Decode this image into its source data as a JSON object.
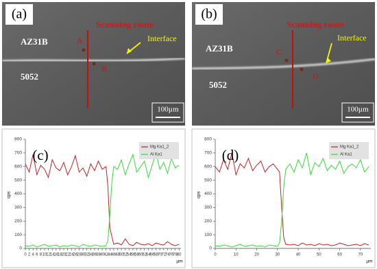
{
  "panels": [
    {
      "label": "(a)",
      "scan_label": "Scanning route",
      "interface_label": "Interface",
      "upper_material": "AZ31B",
      "lower_material": "5052",
      "points": [
        "A",
        "B"
      ],
      "scale_bar": "100µm"
    },
    {
      "label": "(b)",
      "scan_label": "Scanning route",
      "interface_label": "Interface",
      "upper_material": "AZ31B",
      "lower_material": "5052",
      "points": [
        "C",
        "D"
      ],
      "scale_bar": "100µm"
    }
  ],
  "chart_data": [
    {
      "type": "line",
      "panel_label": "(c)",
      "y_label": "cps",
      "x_label": "µm",
      "x": [
        0,
        2,
        4,
        6,
        8,
        10,
        12,
        14,
        16,
        18,
        20,
        22,
        24,
        26,
        28,
        30,
        32,
        34,
        36,
        38,
        40,
        42,
        43,
        44,
        45,
        46,
        48,
        50,
        52,
        54,
        56,
        58,
        60,
        62,
        64,
        66,
        68,
        70,
        72,
        74,
        76,
        78,
        80
      ],
      "series": [
        {
          "name": "Mg Ka1_2",
          "color": "#cc1f1f",
          "values": [
            620,
            560,
            690,
            540,
            610,
            580,
            520,
            650,
            590,
            570,
            630,
            540,
            600,
            680,
            560,
            590,
            530,
            620,
            570,
            640,
            580,
            600,
            450,
            150,
            90,
            30,
            40,
            25,
            70,
            30,
            20,
            45,
            30,
            25,
            35,
            20,
            40,
            30,
            25,
            50,
            30,
            20,
            30
          ]
        },
        {
          "name": "Al Ka1",
          "color": "#33dd33",
          "values": [
            20,
            15,
            25,
            10,
            20,
            30,
            15,
            20,
            25,
            10,
            20,
            15,
            25,
            20,
            10,
            30,
            20,
            15,
            25,
            20,
            15,
            20,
            60,
            250,
            480,
            600,
            580,
            650,
            540,
            620,
            690,
            560,
            600,
            640,
            520,
            610,
            700,
            580,
            630,
            550,
            660,
            590,
            610
          ]
        }
      ],
      "xlim": [
        0,
        81
      ],
      "ylim": [
        0,
        800
      ],
      "xticks": [
        0,
        2,
        4,
        6,
        8,
        10,
        12,
        14,
        16,
        18,
        20,
        22,
        24,
        26,
        28,
        30,
        32,
        34,
        36,
        38,
        40,
        42,
        44,
        46,
        48,
        50,
        52,
        54,
        56,
        58,
        60,
        62,
        64,
        66,
        68,
        70,
        72,
        74,
        76,
        78,
        80
      ],
      "yticks": [
        0,
        100,
        200,
        300,
        400,
        500,
        600,
        700,
        800
      ]
    },
    {
      "type": "line",
      "panel_label": "(d)",
      "y_label": "cps",
      "x_label": "µm",
      "x": [
        0,
        2,
        4,
        6,
        8,
        10,
        12,
        14,
        16,
        18,
        20,
        22,
        24,
        26,
        28,
        30,
        31,
        32,
        33,
        34,
        36,
        38,
        40,
        42,
        44,
        46,
        48,
        50,
        52,
        54,
        56,
        58,
        60,
        62,
        64,
        66,
        68,
        70,
        72,
        74
      ],
      "series": [
        {
          "name": "Mg Ka1_2",
          "color": "#cc1f1f",
          "values": [
            600,
            560,
            650,
            580,
            700,
            540,
            620,
            590,
            660,
            570,
            610,
            640,
            560,
            600,
            620,
            580,
            560,
            300,
            80,
            30,
            25,
            30,
            20,
            40,
            25,
            30,
            20,
            35,
            25,
            30,
            20,
            25,
            40,
            30,
            20,
            25,
            30,
            20,
            35,
            25
          ]
        },
        {
          "name": "Al Ka1",
          "color": "#33dd33",
          "values": [
            20,
            15,
            25,
            20,
            10,
            20,
            30,
            15,
            20,
            25,
            15,
            20,
            10,
            25,
            20,
            15,
            40,
            200,
            450,
            580,
            620,
            560,
            650,
            590,
            700,
            540,
            630,
            600,
            660,
            570,
            610,
            580,
            640,
            550,
            600,
            620,
            590,
            650,
            560,
            600
          ]
        }
      ],
      "xlim": [
        0,
        75
      ],
      "ylim": [
        0,
        800
      ],
      "xticks": [
        0,
        10,
        20,
        30,
        40,
        50,
        60,
        70
      ],
      "yticks": [
        0,
        100,
        200,
        300,
        400,
        500,
        600,
        700,
        800
      ]
    }
  ]
}
